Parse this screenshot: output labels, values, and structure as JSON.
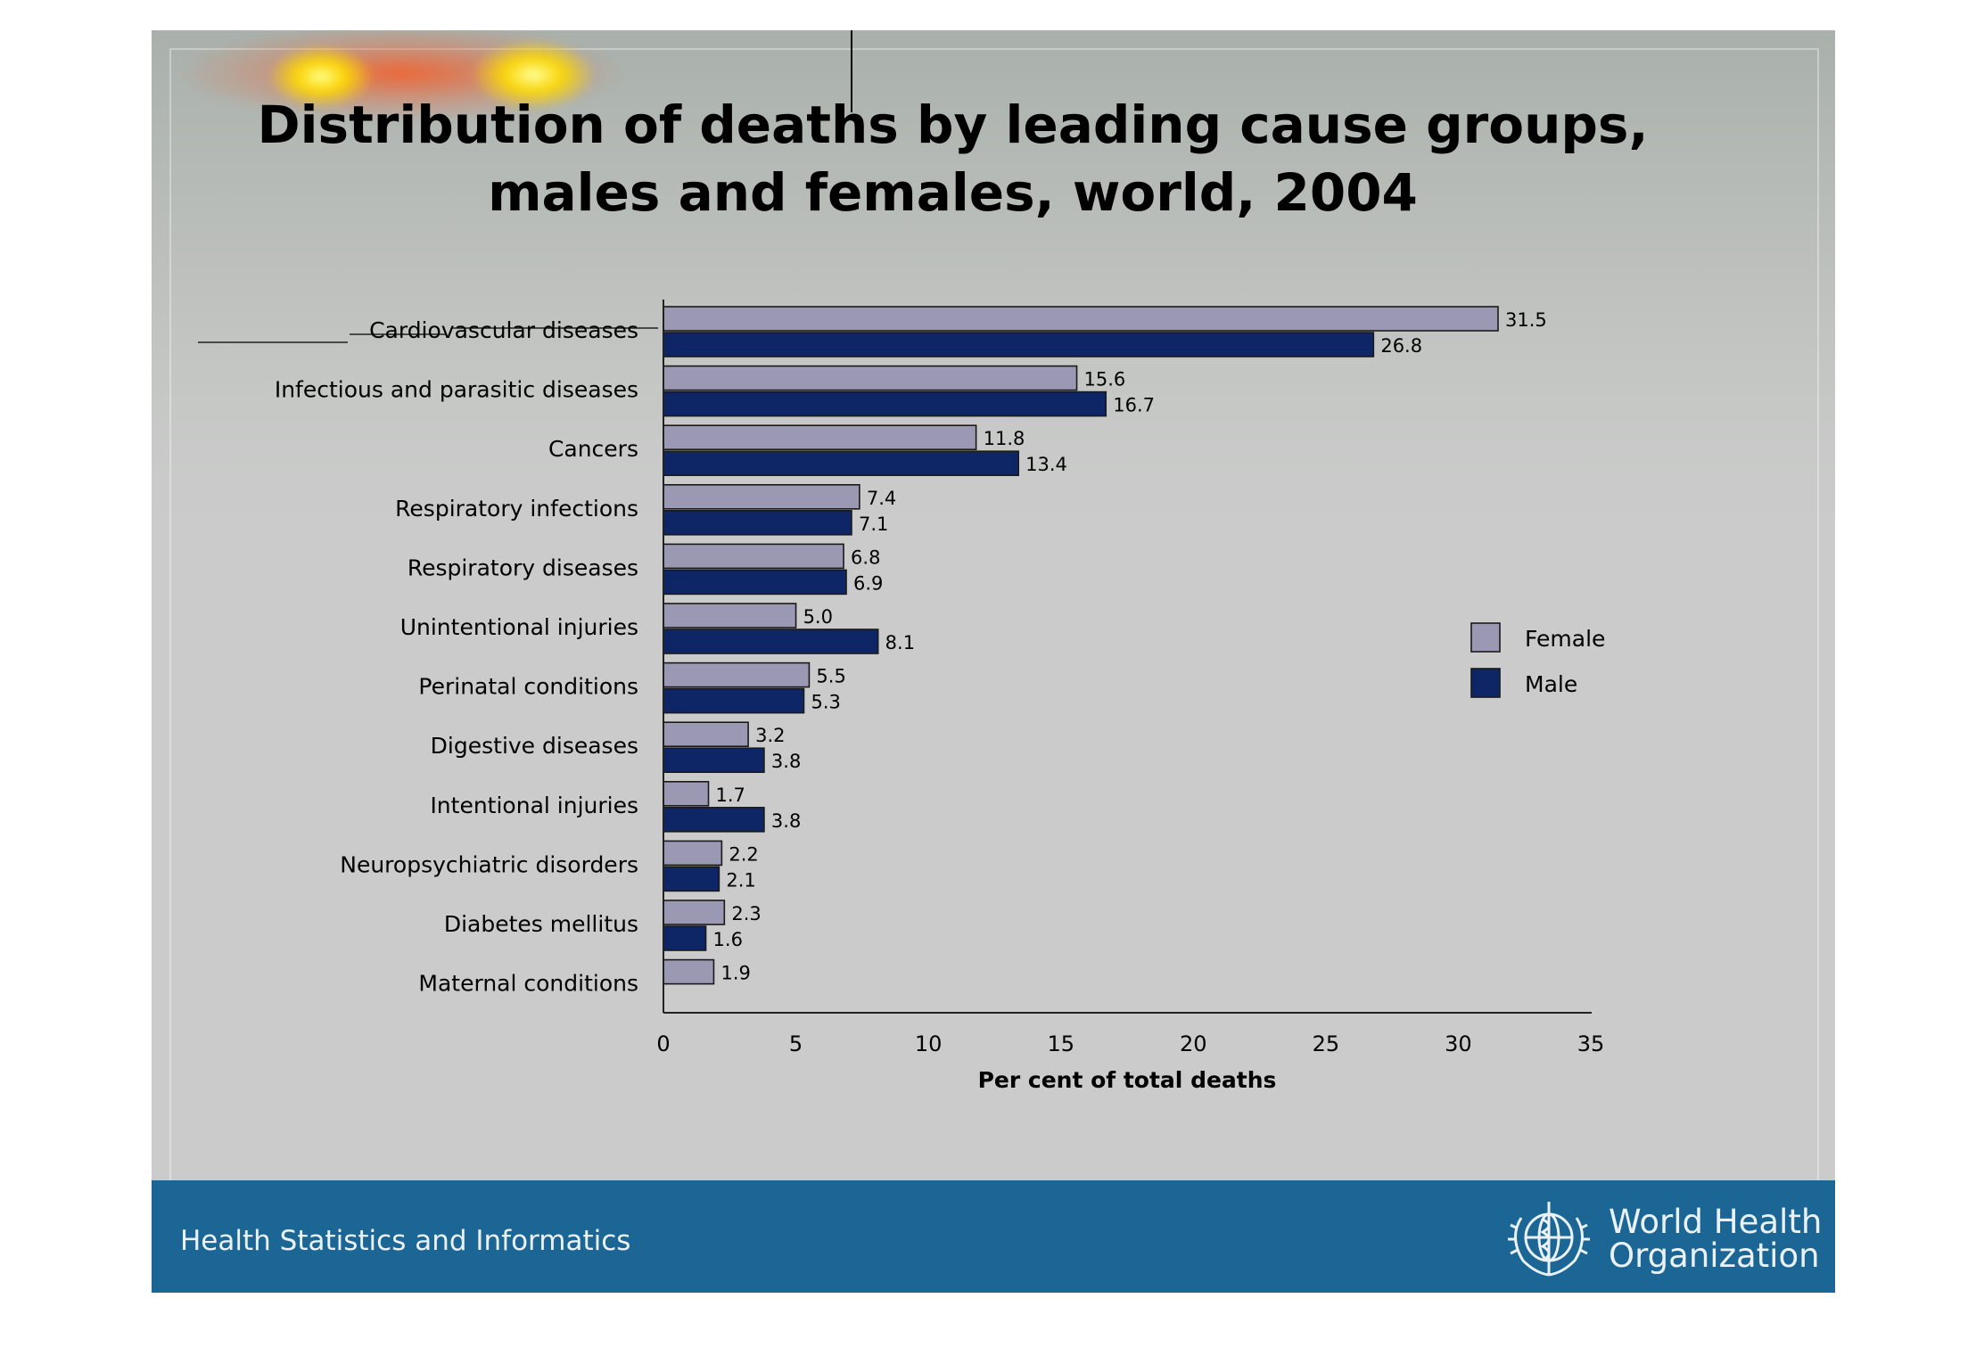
{
  "slide": {
    "title_line1": "Distribution of deaths by leading cause groups,",
    "title_line2": "males and females, world, 2004",
    "footer_left": "Health Statistics and Informatics",
    "org_line1": "World Health",
    "org_line2": "Organization",
    "colors": {
      "female": "#9b98b4",
      "male": "#0e2566",
      "footer": "#1b6695"
    }
  },
  "chart_data": {
    "type": "bar",
    "orientation": "horizontal",
    "title": "Distribution of deaths by leading cause groups, males and females, world, 2004",
    "xlabel": "Per cent of total deaths",
    "ylabel": "",
    "xlim": [
      0,
      35
    ],
    "xticks": [
      "0",
      "5",
      "10",
      "15",
      "20",
      "25",
      "30",
      "35"
    ],
    "categories": [
      "Cardiovascular diseases",
      "Infectious and parasitic diseases",
      "Cancers",
      "Respiratory infections",
      "Respiratory diseases",
      "Unintentional injuries",
      "Perinatal conditions",
      "Digestive diseases",
      "Intentional injuries",
      "Neuropsychiatric disorders",
      "Diabetes mellitus",
      "Maternal conditions"
    ],
    "series": [
      {
        "name": "Female",
        "color": "#9b98b4",
        "values": [
          31.5,
          15.6,
          11.8,
          7.4,
          6.8,
          5.0,
          5.5,
          3.2,
          1.7,
          2.2,
          2.3,
          1.9
        ],
        "labels": [
          "31.5",
          "15.6",
          "11.8",
          "7.4",
          "6.8",
          "5.0",
          "5.5",
          "3.2",
          "1.7",
          "2.2",
          "2.3",
          "1.9"
        ]
      },
      {
        "name": "Male",
        "color": "#0e2566",
        "values": [
          26.8,
          16.7,
          13.4,
          7.1,
          6.9,
          8.1,
          5.3,
          3.8,
          3.8,
          2.1,
          1.6,
          null
        ],
        "labels": [
          "26.8",
          "16.7",
          "13.4",
          "7.1",
          "6.9",
          "8.1",
          "5.3",
          "3.8",
          "3.8",
          "2.1",
          "1.6",
          ""
        ]
      }
    ],
    "legend": "right",
    "grid": false
  }
}
